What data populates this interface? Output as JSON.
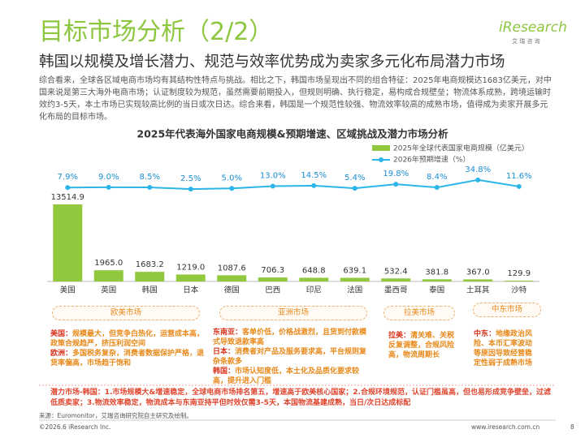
{
  "header": {
    "title": "目标市场分析（2/2）",
    "subtitle": "韩国以规模及增长潜力、规范与效率优势成为卖家多元化布局潜力市场",
    "logo": "iResearch",
    "logo_sub": "艾 瑞 咨 询"
  },
  "intro": "综合看来，全球各区域电商市场均有其结构性特点与挑战。相比之下，韩国市场呈现出不同的组合特征：2025年电商规模达1683亿美元，对中国来说是第三大海外电商市场；认证制度较为规范，虽然需要前期投入，但规则明确、执行稳定，易构成合规壁垒；物流体系成熟，跨境运输时效约3-5天，本土市场已实现较高比例的当日或次日达。综合来看，韩国是一个规范性较强、物流效率较高的成熟市场，值得成为卖家开展多元化布局的目标市场。",
  "chart_data": {
    "type": "bar",
    "title": "2025年代表海外国家电商规模&预期增速、区域挑战及潜力市场分析",
    "categories": [
      "美国",
      "英国",
      "韩国",
      "日本",
      "德国",
      "巴西",
      "印尼",
      "法国",
      "墨西哥",
      "泰国",
      "土耳其",
      "沙特"
    ],
    "series": [
      {
        "name": "2025年全球代表国家电商规模（亿美元）",
        "color": "#92c83e",
        "values": [
          13514.9,
          1965.0,
          1683.2,
          1219.0,
          1087.6,
          706.3,
          648.8,
          639.1,
          532.4,
          381.8,
          367.0,
          129.9
        ],
        "value_labels": [
          "13514.9",
          "1965.0",
          "1683.2",
          "1219.0",
          "1087.6",
          "706.3",
          "648.8",
          "639.1",
          "532.4",
          "381.8",
          "367.0",
          "129.9"
        ]
      },
      {
        "name": "2026年预期增速（%）",
        "type": "line",
        "color": "#2bb5e8",
        "values": [
          7.9,
          9.0,
          8.5,
          2.5,
          5.0,
          13.0,
          14.5,
          5.4,
          19.8,
          8.4,
          34.8,
          11.6
        ],
        "value_labels": [
          "7.9%",
          "9.0%",
          "8.5%",
          "2.5%",
          "5.0%",
          "13.0%",
          "14.5%",
          "5.4%",
          "19.8%",
          "8.4%",
          "34.8%",
          "11.6%"
        ]
      }
    ]
  },
  "regions": [
    {
      "name": "欧美市场",
      "items": [
        {
          "label": "美国：",
          "text": "规模最大，但竞争白热化，运营成本高，政策合规趋严，挤压利润空间"
        },
        {
          "label": "欧洲：",
          "text": "多国税务复杂，消费者数据保护严格，退货率偏高，市场趋于饱和"
        }
      ]
    },
    {
      "name": "亚洲市场",
      "items": [
        {
          "label": "东南亚：",
          "text": "客单价低，价格战激烈，且货到付款模式导致退款率高"
        },
        {
          "label": "日本：",
          "text": "消费者对产品及服务要求高，平台规则复杂条款多"
        },
        {
          "label": "韩国：",
          "text": "市场认知度低，本土化及品质化要求较高，提升进入门槛"
        }
      ]
    },
    {
      "name": "拉美市场",
      "items": [
        {
          "label": "拉美：",
          "text": "清关难、关税反复调整，合规风险高，物流周期长"
        }
      ]
    },
    {
      "name": "中东市场",
      "items": [
        {
          "label": "中东：",
          "text": "地缘政治风险、本币汇率波动等原因导致经营稳定性弱于成熟市场"
        }
      ]
    }
  ],
  "summary": {
    "label": "潜力市场-韩国：",
    "text": "1.市场规模大&增速稳定，全球电商市场排名第五，增速高于欧美核心国家；2.合规环境规范，认证门槛虽高，但也易形成竞争壁垒，过滤低质卖家；3.物流效率稳定，物流成本与东南亚持平但时效仅需3-5天，本国物流基建成熟，当日/次日达成标配"
  },
  "source": "来源：Euromonitor，艾瑞咨询研究院自主研究及绘制。",
  "footer": {
    "copyright": "©2026.6 iResearch Inc.",
    "url": "www.iresearch.com.cn",
    "page": 8
  }
}
